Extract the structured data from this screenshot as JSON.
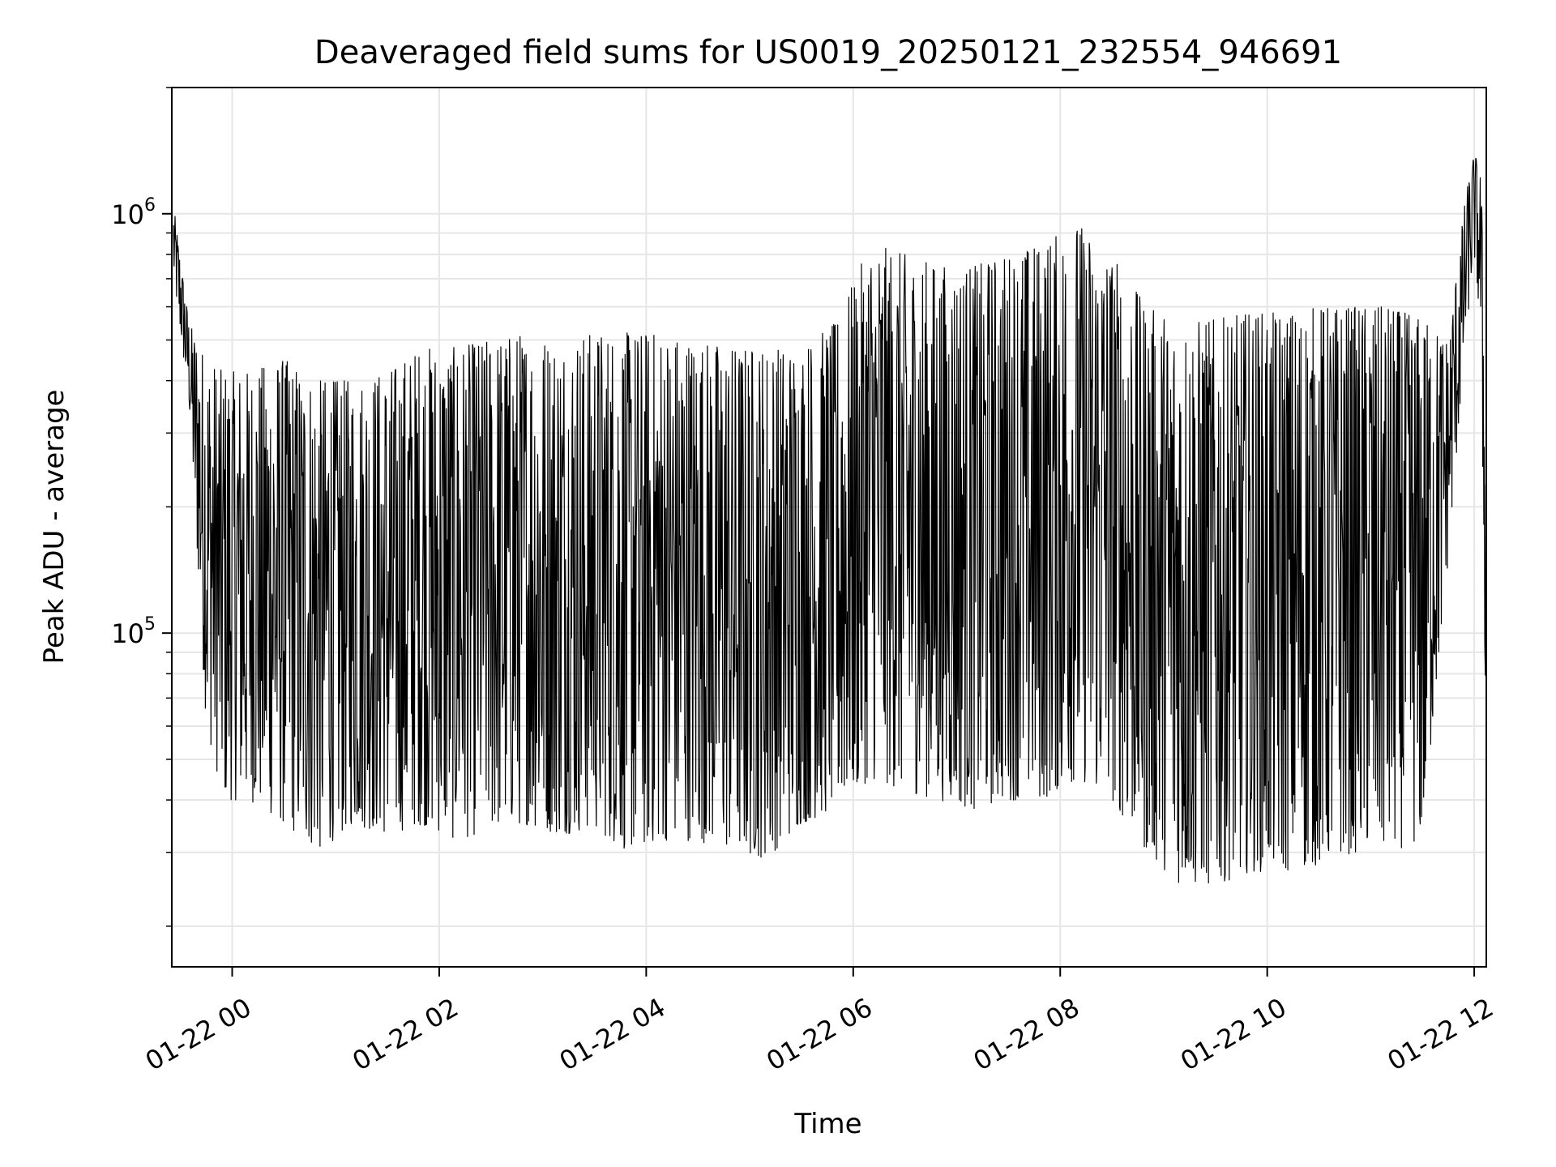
{
  "chart_data": {
    "type": "line",
    "title": "Deaveraged field sums for US0019_20250121_232554_946691",
    "xlabel": "Time",
    "ylabel": "Peak ADU - average",
    "yscale": "log",
    "xlim": [
      "2025-01-21T23:25",
      "2025-01-22T12:07"
    ],
    "ylim": [
      16000,
      2000000
    ],
    "grid": true,
    "x_ticks": [
      {
        "value": "2025-01-22T00:00",
        "label": "01-22 00"
      },
      {
        "value": "2025-01-22T02:00",
        "label": "01-22 02"
      },
      {
        "value": "2025-01-22T04:00",
        "label": "01-22 04"
      },
      {
        "value": "2025-01-22T06:00",
        "label": "01-22 06"
      },
      {
        "value": "2025-01-22T08:00",
        "label": "01-22 08"
      },
      {
        "value": "2025-01-22T10:00",
        "label": "01-22 10"
      },
      {
        "value": "2025-01-22T12:00",
        "label": "01-22 12"
      }
    ],
    "y_ticks": [
      {
        "value": 100000,
        "base": "10",
        "exp": "5"
      },
      {
        "value": 1000000,
        "base": "10",
        "exp": "6"
      }
    ],
    "series": [
      {
        "color": "#000000",
        "x": [
          "2025-01-21T23:26",
          "2025-01-21T23:35",
          "2025-01-21T23:45",
          "2025-01-21T23:55",
          "2025-01-22T00:10",
          "2025-01-22T00:30",
          "2025-01-22T00:50",
          "2025-01-22T01:10",
          "2025-01-22T01:30",
          "2025-01-22T01:50",
          "2025-01-22T02:10",
          "2025-01-22T02:30",
          "2025-01-22T02:50",
          "2025-01-22T03:10",
          "2025-01-22T03:30",
          "2025-01-22T03:50",
          "2025-01-22T04:10",
          "2025-01-22T04:30",
          "2025-01-22T04:50",
          "2025-01-22T05:10",
          "2025-01-22T05:30",
          "2025-01-22T05:50",
          "2025-01-22T06:10",
          "2025-01-22T06:30",
          "2025-01-22T06:50",
          "2025-01-22T07:10",
          "2025-01-22T07:30",
          "2025-01-22T07:50",
          "2025-01-22T08:10",
          "2025-01-22T08:30",
          "2025-01-22T08:50",
          "2025-01-22T09:10",
          "2025-01-22T09:30",
          "2025-01-22T09:50",
          "2025-01-22T10:10",
          "2025-01-22T10:30",
          "2025-01-22T10:50",
          "2025-01-22T11:10",
          "2025-01-22T11:30",
          "2025-01-22T11:45",
          "2025-01-22T11:55",
          "2025-01-22T12:00",
          "2025-01-22T12:04",
          "2025-01-22T12:07"
        ],
        "low": [
          700000,
          350000,
          60000,
          40000,
          40000,
          35000,
          30000,
          35000,
          33000,
          35000,
          32000,
          34000,
          35000,
          33000,
          34000,
          30000,
          32000,
          32000,
          30000,
          29000,
          35000,
          38000,
          45000,
          42000,
          40000,
          38000,
          40000,
          40000,
          45000,
          40000,
          30000,
          25000,
          25000,
          27000,
          27000,
          28000,
          30000,
          30000,
          32000,
          150000,
          500000,
          800000,
          500000,
          45000
        ],
        "high": [
          1050000,
          550000,
          450000,
          420000,
          420000,
          450000,
          400000,
          400000,
          420000,
          480000,
          480000,
          500000,
          520000,
          500000,
          520000,
          520000,
          520000,
          500000,
          480000,
          480000,
          480000,
          550000,
          850000,
          800000,
          750000,
          750000,
          800000,
          850000,
          950000,
          800000,
          600000,
          550000,
          560000,
          580000,
          580000,
          600000,
          600000,
          600000,
          560000,
          500000,
          1100000,
          1400000,
          1250000,
          300000
        ]
      }
    ]
  }
}
